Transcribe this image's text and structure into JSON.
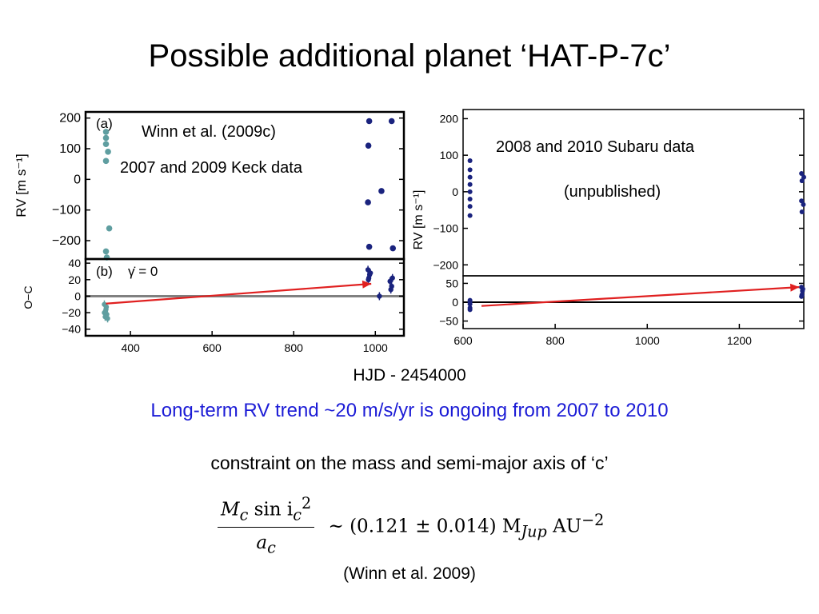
{
  "title": "Possible additional planet ‘HAT-P-7c’",
  "x_axis_label": "HJD - 2454000",
  "trend_text": "Long-term RV trend ~20 m/s/yr is ongoing from 2007 to 2010",
  "constraint_text": "constraint on the mass and semi-major axis of ‘c’",
  "formula": {
    "numerator": "M",
    "numerator_sub": "c",
    "numerator_rest": " sin i",
    "numerator_rest_sub": "c",
    "numerator_sup": "2",
    "denominator": "a",
    "denominator_sub": "c",
    "rhs": "~ (0.121 ± 0.014) M",
    "rhs_sub": "Jup",
    "rhs_unit": " AU",
    "rhs_unit_sup": "−2"
  },
  "citation": "(Winn et al. 2009)",
  "colors": {
    "keck_early": "#5f9ea0",
    "keck_late": "#1a237e",
    "subaru": "#1a237e",
    "arrow": "#e02020",
    "trend_text": "#1c1cd6",
    "zero_line_left": "#808080",
    "zero_line_right": "#000000"
  },
  "chart_data": [
    {
      "type": "scatter",
      "panel": "left-top",
      "panel_tag": "(a)",
      "annotation_lines": [
        "Winn et al. (2009c)",
        "2007 and 2009 Keck data"
      ],
      "ylabel": "RV [m s⁻¹]",
      "xlim": [
        290,
        1070
      ],
      "ylim": [
        -260,
        220
      ],
      "yticks": [
        "200",
        "100",
        "0",
        "−100",
        "−200"
      ],
      "ytick_values": [
        200,
        100,
        0,
        -100,
        -200
      ],
      "series": [
        {
          "name": "",
          "points": [
            [
              340,
              155
            ],
            [
              340,
              135
            ],
            [
              340,
              115
            ],
            [
              345,
              90
            ],
            [
              340,
              60
            ],
            [
              348,
              -160
            ],
            [
              340,
              -235
            ],
            [
              342,
              -255
            ]
          ]
        },
        {
          "name": "",
          "points": [
            [
              985,
              190
            ],
            [
              1040,
              190
            ],
            [
              983,
              110
            ],
            [
              1015,
              -38
            ],
            [
              982,
              -75
            ],
            [
              985,
              -220
            ],
            [
              1043,
              -225
            ]
          ]
        }
      ]
    },
    {
      "type": "scatter",
      "panel": "left-bottom",
      "panel_tag": "(b)",
      "panel_note": "γ̇ = 0",
      "ylabel": "O−C",
      "xlim": [
        290,
        1070
      ],
      "ylim": [
        -48,
        45
      ],
      "yticks": [
        "40",
        "20",
        "0",
        "−20",
        "−40"
      ],
      "ytick_values": [
        40,
        20,
        0,
        -20,
        -40
      ],
      "xticks": [
        "400",
        "600",
        "800",
        "1000"
      ],
      "xtick_values": [
        400,
        600,
        800,
        1000
      ],
      "series": [
        {
          "name": "",
          "points": [
            [
              336,
              -10
            ],
            [
              340,
              -16
            ],
            [
              336,
              -20
            ],
            [
              342,
              -22
            ],
            [
              344,
              -27
            ],
            [
              338,
              -25
            ],
            [
              341,
              -13
            ],
            [
              339,
              -18
            ]
          ]
        },
        {
          "name": "",
          "points": [
            [
              982,
              32
            ],
            [
              984,
              22
            ],
            [
              986,
              26
            ],
            [
              988,
              28
            ],
            [
              983,
              20
            ],
            [
              1010,
              0
            ],
            [
              1036,
              18
            ],
            [
              1040,
              12
            ],
            [
              1042,
              22
            ],
            [
              1038,
              8
            ]
          ]
        }
      ],
      "trend_arrow": {
        "from": [
          340,
          -9
        ],
        "to": [
          990,
          15
        ]
      }
    },
    {
      "type": "scatter",
      "panel": "right-top",
      "annotation_lines": [
        "2008 and 2010 Subaru data",
        "(unpublished)"
      ],
      "ylabel": "RV [m s⁻¹]",
      "xlim": [
        600,
        1340
      ],
      "ylim": [
        -230,
        225
      ],
      "yticks": [
        "200",
        "100",
        "0",
        "−100",
        "−200"
      ],
      "ytick_values": [
        200,
        100,
        0,
        -100,
        -200
      ],
      "series": [
        {
          "name": "",
          "points": [
            [
              615,
              85
            ],
            [
              615,
              60
            ],
            [
              615,
              40
            ],
            [
              615,
              20
            ],
            [
              615,
              0
            ],
            [
              615,
              -20
            ],
            [
              615,
              -40
            ],
            [
              615,
              -65
            ]
          ]
        },
        {
          "name": "",
          "points": [
            [
              1335,
              50
            ],
            [
              1340,
              40
            ],
            [
              1336,
              30
            ],
            [
              1335,
              -25
            ],
            [
              1339,
              -35
            ],
            [
              1336,
              -55
            ]
          ]
        }
      ]
    },
    {
      "type": "scatter",
      "panel": "right-bottom",
      "xlim": [
        600,
        1340
      ],
      "ylim": [
        -70,
        70
      ],
      "yticks": [
        "50",
        "0",
        "−50"
      ],
      "ytick_values": [
        50,
        0,
        -50
      ],
      "xticks": [
        "600",
        "800",
        "1000",
        "1200"
      ],
      "xtick_values": [
        600,
        800,
        1000,
        1200
      ],
      "series": [
        {
          "name": "",
          "points": [
            [
              615,
              -15
            ],
            [
              615,
              -5
            ],
            [
              615,
              5
            ],
            [
              615,
              -20
            ],
            [
              615,
              0
            ]
          ]
        },
        {
          "name": "",
          "points": [
            [
              1335,
              40
            ],
            [
              1337,
              30
            ],
            [
              1336,
              20
            ],
            [
              1338,
              35
            ],
            [
              1335,
              15
            ]
          ]
        }
      ],
      "trend_arrow": {
        "from": [
          640,
          -10
        ],
        "to": [
          1330,
          40
        ]
      }
    }
  ]
}
